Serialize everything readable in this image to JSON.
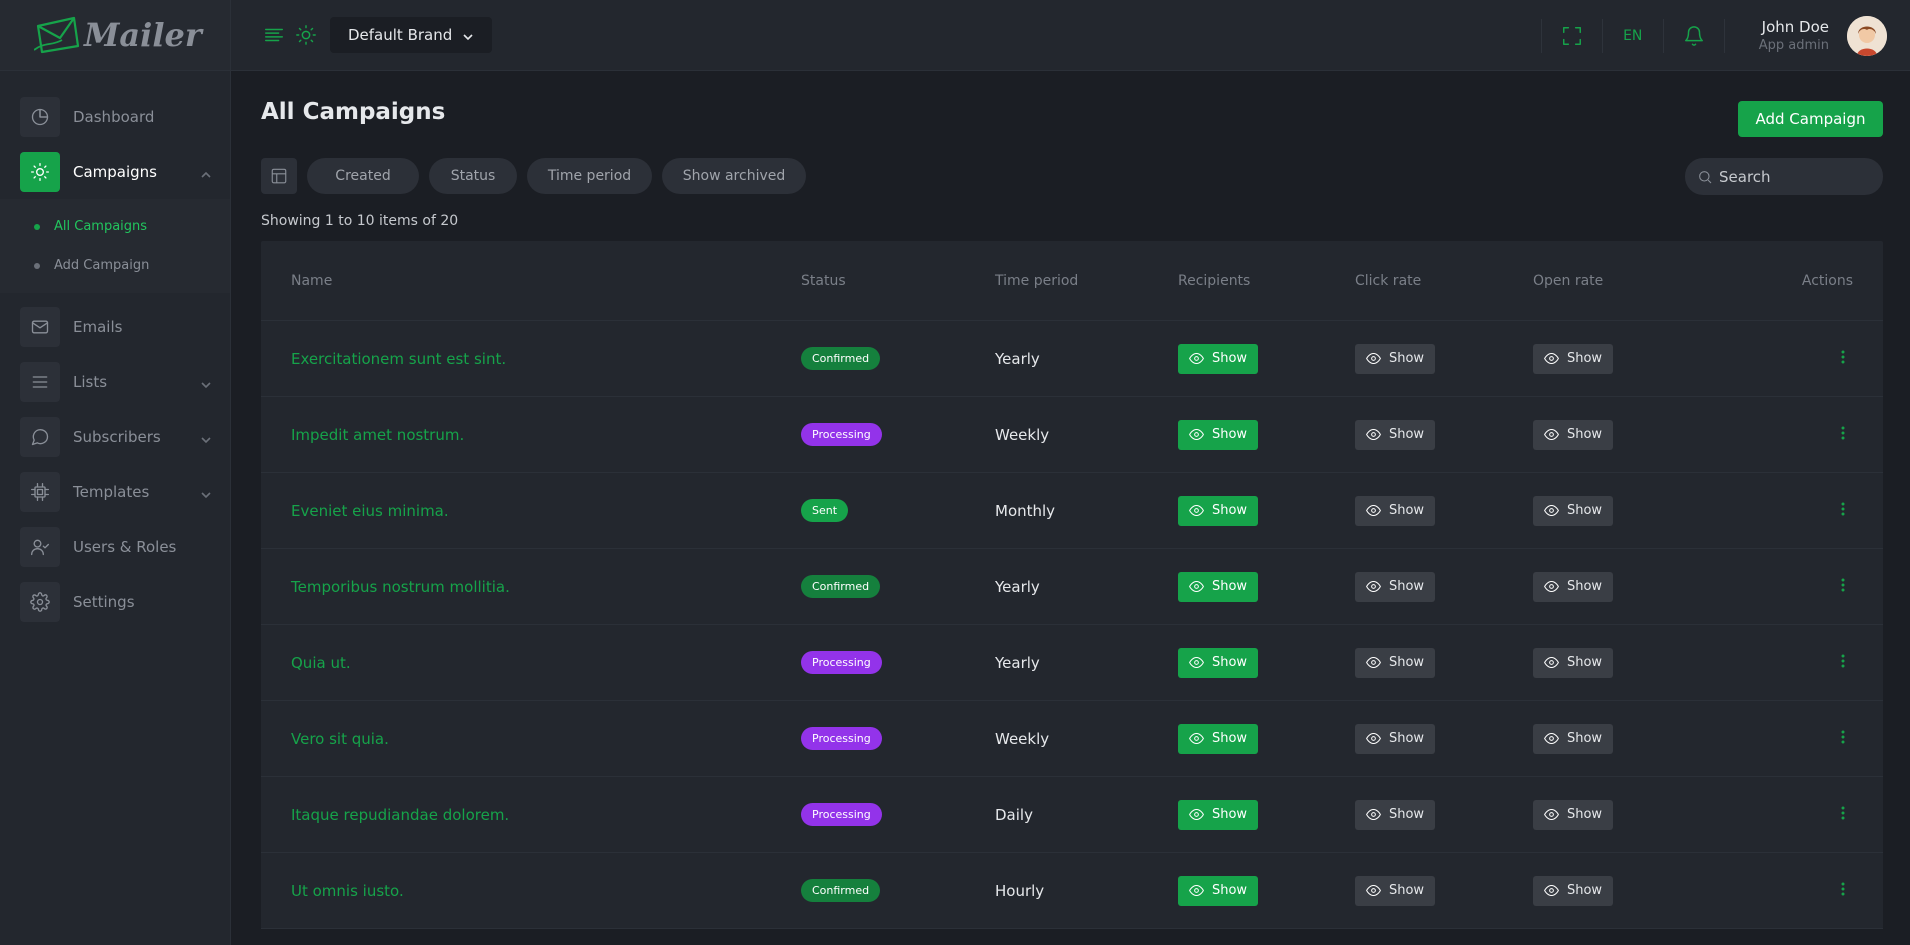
{
  "app": {
    "logo_text": "Mailer"
  },
  "sidebar": {
    "items": [
      {
        "label": "Dashboard",
        "icon": "pie-chart-icon"
      },
      {
        "label": "Campaigns",
        "icon": "sun-icon",
        "active": true,
        "expanded": true,
        "children": [
          {
            "label": "All Campaigns",
            "active": true
          },
          {
            "label": "Add Campaign"
          }
        ]
      },
      {
        "label": "Emails",
        "icon": "mail-icon"
      },
      {
        "label": "Lists",
        "icon": "list-icon",
        "has_children": true
      },
      {
        "label": "Subscribers",
        "icon": "chat-icon",
        "has_children": true
      },
      {
        "label": "Templates",
        "icon": "chip-icon",
        "has_children": true
      },
      {
        "label": "Users & Roles",
        "icon": "user-check-icon"
      },
      {
        "label": "Settings",
        "icon": "gear-icon"
      }
    ]
  },
  "topbar": {
    "brand": "Default Brand",
    "lang": "EN",
    "user_name": "John Doe",
    "user_role": "App admin"
  },
  "page": {
    "title": "All Campaigns",
    "add_button": "Add Campaign",
    "filters": [
      "Created",
      "Status",
      "Time period",
      "Show archived"
    ],
    "search_placeholder": "Search",
    "count_text": "Showing 1 to 10 items of 20"
  },
  "table": {
    "headers": {
      "name": "Name",
      "status": "Status",
      "time": "Time period",
      "recipients": "Recipients",
      "click": "Click rate",
      "open": "Open rate",
      "actions": "Actions"
    },
    "show_label": "Show",
    "rows": [
      {
        "name": "Exercitationem sunt est sint.",
        "status": "Confirmed",
        "time": "Yearly"
      },
      {
        "name": "Impedit amet nostrum.",
        "status": "Processing",
        "time": "Weekly"
      },
      {
        "name": "Eveniet eius minima.",
        "status": "Sent",
        "time": "Monthly"
      },
      {
        "name": "Temporibus nostrum mollitia.",
        "status": "Confirmed",
        "time": "Yearly"
      },
      {
        "name": "Quia ut.",
        "status": "Processing",
        "time": "Yearly"
      },
      {
        "name": "Vero sit quia.",
        "status": "Processing",
        "time": "Weekly"
      },
      {
        "name": "Itaque repudiandae dolorem.",
        "status": "Processing",
        "time": "Daily"
      },
      {
        "name": "Ut omnis iusto.",
        "status": "Confirmed",
        "time": "Hourly"
      }
    ]
  },
  "colors": {
    "accent": "#16a34a",
    "processing": "#9333ea",
    "background": "#1b1e24",
    "panel": "#23272e"
  }
}
